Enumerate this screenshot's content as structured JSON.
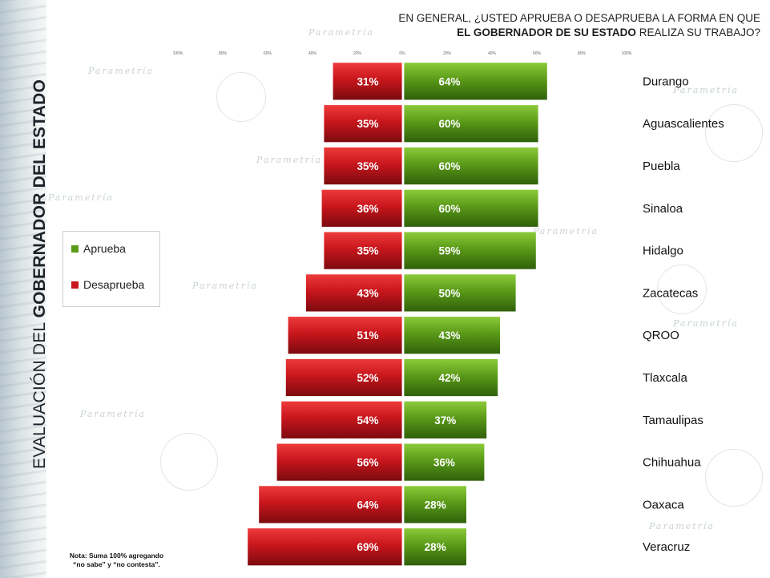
{
  "header": {
    "line1": "EN GENERAL, ¿USTED APRUEBA O DESAPRUEBA LA FORMA EN QUE",
    "line2_bold": "EL GOBERNADOR DE SU ESTADO",
    "line2_rest": " REALIZA SU TRABAJO?"
  },
  "side_title": {
    "part1": "EVALUACIÓN DEL ",
    "part2": "GOBERNADOR DEL ESTADO"
  },
  "watermark_text": "Parametría",
  "note": {
    "line1": "Nota: Suma 100% agregando",
    "line2": "“no sabe” y “no contesta”."
  },
  "colors": {
    "aprueba": "#5a9a18",
    "desaprueba": "#c8161d"
  },
  "chart_data": {
    "type": "bar",
    "orientation": "horizontal-diverging",
    "x_ticks": [
      "100%",
      "80%",
      "60%",
      "40%",
      "20%",
      "0%",
      "20%",
      "40%",
      "60%",
      "80%",
      "100%"
    ],
    "xlim": [
      -100,
      100
    ],
    "legend": [
      "Aprueba",
      "Desaprueba"
    ],
    "legend_placement": "left",
    "categories": [
      "Durango",
      "Aguascalientes",
      "Puebla",
      "Sinaloa",
      "Hidalgo",
      "Zacatecas",
      "QROO",
      "Tlaxcala",
      "Tamaulipas",
      "Chihuahua",
      "Oaxaca",
      "Veracruz"
    ],
    "series": [
      {
        "name": "Aprueba",
        "values": [
          64,
          60,
          60,
          60,
          59,
          50,
          43,
          42,
          37,
          36,
          28,
          28
        ],
        "labels": [
          "64%",
          "60%",
          "60%",
          "60%",
          "59%",
          "50%",
          "43%",
          "42%",
          "37%",
          "36%",
          "28%",
          "28%"
        ]
      },
      {
        "name": "Desaprueba",
        "values": [
          31,
          35,
          35,
          36,
          35,
          43,
          51,
          52,
          54,
          56,
          64,
          69
        ],
        "labels": [
          "31%",
          "35%",
          "35%",
          "36%",
          "35%",
          "43%",
          "51%",
          "52%",
          "54%",
          "56%",
          "64%",
          "69%"
        ]
      }
    ]
  }
}
